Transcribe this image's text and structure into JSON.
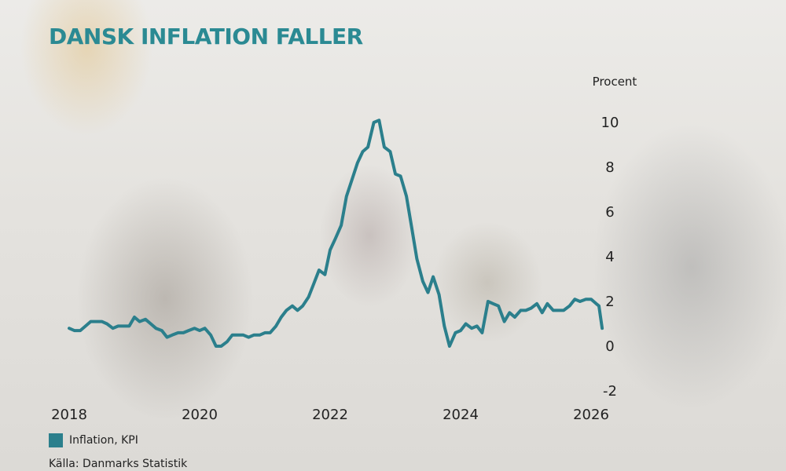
{
  "chart_data": {
    "type": "line",
    "title": "DANSK INFLATION FALLER",
    "ylabel": "Procent",
    "xlim": [
      2018,
      2026
    ],
    "ylim": [
      -2,
      10
    ],
    "x_ticks": [
      "2018",
      "2020",
      "2022",
      "2024",
      "2026"
    ],
    "y_ticks": [
      "10",
      "8",
      "6",
      "4",
      "2",
      "0",
      "-2"
    ],
    "y_axis_side": "right",
    "grid": false,
    "legend_position": "bottom-left",
    "colors": {
      "line": "#2b7f8c",
      "title": "#2b8a93"
    },
    "series": [
      {
        "name": "Inflation, KPI",
        "points": [
          [
            2018.0,
            0.8
          ],
          [
            2018.08,
            0.7
          ],
          [
            2018.17,
            0.7
          ],
          [
            2018.25,
            0.9
          ],
          [
            2018.33,
            1.1
          ],
          [
            2018.42,
            1.1
          ],
          [
            2018.5,
            1.1
          ],
          [
            2018.58,
            1.0
          ],
          [
            2018.67,
            0.8
          ],
          [
            2018.75,
            0.9
          ],
          [
            2018.83,
            0.9
          ],
          [
            2018.92,
            0.9
          ],
          [
            2019.0,
            1.3
          ],
          [
            2019.08,
            1.1
          ],
          [
            2019.17,
            1.2
          ],
          [
            2019.25,
            1.0
          ],
          [
            2019.33,
            0.8
          ],
          [
            2019.42,
            0.7
          ],
          [
            2019.5,
            0.4
          ],
          [
            2019.58,
            0.5
          ],
          [
            2019.67,
            0.6
          ],
          [
            2019.75,
            0.6
          ],
          [
            2019.83,
            0.7
          ],
          [
            2019.92,
            0.8
          ],
          [
            2020.0,
            0.7
          ],
          [
            2020.08,
            0.8
          ],
          [
            2020.17,
            0.5
          ],
          [
            2020.25,
            0.0
          ],
          [
            2020.33,
            0.0
          ],
          [
            2020.42,
            0.2
          ],
          [
            2020.5,
            0.5
          ],
          [
            2020.58,
            0.5
          ],
          [
            2020.67,
            0.5
          ],
          [
            2020.75,
            0.4
          ],
          [
            2020.83,
            0.5
          ],
          [
            2020.92,
            0.5
          ],
          [
            2021.0,
            0.6
          ],
          [
            2021.08,
            0.6
          ],
          [
            2021.17,
            0.9
          ],
          [
            2021.25,
            1.3
          ],
          [
            2021.33,
            1.6
          ],
          [
            2021.42,
            1.8
          ],
          [
            2021.5,
            1.6
          ],
          [
            2021.58,
            1.8
          ],
          [
            2021.67,
            2.2
          ],
          [
            2021.75,
            2.8
          ],
          [
            2021.83,
            3.4
          ],
          [
            2021.92,
            3.2
          ],
          [
            2022.0,
            4.3
          ],
          [
            2022.08,
            4.8
          ],
          [
            2022.17,
            5.4
          ],
          [
            2022.25,
            6.7
          ],
          [
            2022.33,
            7.4
          ],
          [
            2022.42,
            8.2
          ],
          [
            2022.5,
            8.7
          ],
          [
            2022.58,
            8.9
          ],
          [
            2022.67,
            10.0
          ],
          [
            2022.75,
            10.1
          ],
          [
            2022.83,
            8.9
          ],
          [
            2022.92,
            8.7
          ],
          [
            2023.0,
            7.7
          ],
          [
            2023.08,
            7.6
          ],
          [
            2023.17,
            6.7
          ],
          [
            2023.25,
            5.3
          ],
          [
            2023.33,
            3.9
          ],
          [
            2023.42,
            2.9
          ],
          [
            2023.5,
            2.4
          ],
          [
            2023.58,
            3.1
          ],
          [
            2023.67,
            2.3
          ],
          [
            2023.75,
            0.9
          ],
          [
            2023.83,
            0.0
          ],
          [
            2023.92,
            0.6
          ],
          [
            2024.0,
            0.7
          ],
          [
            2024.08,
            1.0
          ],
          [
            2024.17,
            0.8
          ],
          [
            2024.25,
            0.9
          ],
          [
            2024.33,
            0.6
          ],
          [
            2024.42,
            2.0
          ],
          [
            2024.5,
            1.9
          ],
          [
            2024.58,
            1.8
          ],
          [
            2024.67,
            1.1
          ],
          [
            2024.75,
            1.5
          ],
          [
            2024.83,
            1.3
          ],
          [
            2024.92,
            1.6
          ],
          [
            2025.0,
            1.6
          ],
          [
            2025.08,
            1.7
          ],
          [
            2025.17,
            1.9
          ],
          [
            2025.25,
            1.5
          ],
          [
            2025.33,
            1.9
          ],
          [
            2025.42,
            1.6
          ],
          [
            2025.5,
            1.6
          ],
          [
            2025.58,
            1.6
          ],
          [
            2025.67,
            1.8
          ],
          [
            2025.75,
            2.1
          ],
          [
            2025.83,
            2.0
          ],
          [
            2025.92,
            2.1
          ],
          [
            2026.0,
            2.1
          ],
          [
            2026.04,
            2.0
          ],
          [
            2026.08,
            1.9
          ],
          [
            2026.12,
            1.8
          ],
          [
            2026.17,
            0.8
          ]
        ]
      }
    ],
    "legend_label": "Inflation, KPI",
    "source": "Källa: Danmarks Statistik"
  }
}
